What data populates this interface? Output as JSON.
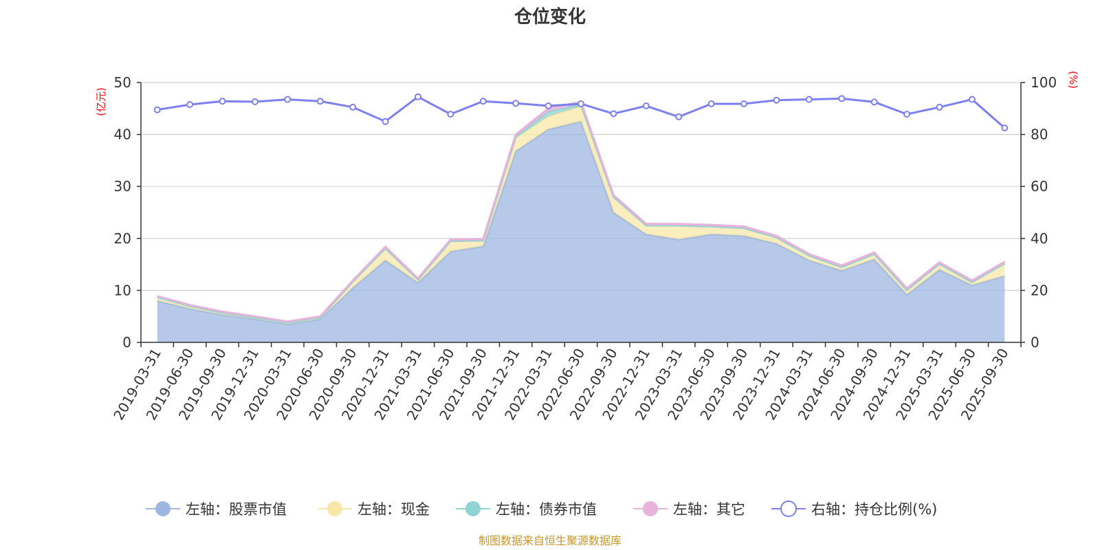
{
  "chart_data": {
    "type": "area",
    "title": "仓位变化",
    "left_axis_unit": "(亿元)",
    "right_axis_unit": "(%)",
    "left_ylim": [
      0,
      50
    ],
    "left_ticks": [
      0,
      10,
      20,
      30,
      40,
      50
    ],
    "right_ylim": [
      0,
      100
    ],
    "right_ticks": [
      0,
      20,
      40,
      60,
      80,
      100
    ],
    "grid": true,
    "legend_placement": "bottom",
    "categories": [
      "2019-03-31",
      "2019-06-30",
      "2019-09-30",
      "2019-12-31",
      "2020-03-31",
      "2020-06-30",
      "2020-09-30",
      "2020-12-31",
      "2021-03-31",
      "2021-06-30",
      "2021-09-30",
      "2021-12-31",
      "2022-03-31",
      "2022-06-30",
      "2022-09-30",
      "2022-12-31",
      "2023-03-31",
      "2023-06-30",
      "2023-09-30",
      "2023-12-31",
      "2024-03-31",
      "2024-06-30",
      "2024-09-30",
      "2024-12-31",
      "2025-03-31",
      "2025-06-30",
      "2025-09-30"
    ],
    "series": [
      {
        "name": "左轴：股票市值",
        "axis": "left",
        "stack": "total",
        "color": "#9fb7e0",
        "values": [
          8.0,
          6.5,
          5.3,
          4.5,
          3.5,
          4.5,
          10.5,
          15.8,
          11.5,
          17.5,
          18.5,
          36.8,
          41.0,
          42.5,
          25.0,
          20.8,
          19.8,
          20.8,
          20.5,
          19.0,
          15.8,
          13.8,
          16.0,
          9.2,
          14.0,
          11.0,
          12.8
        ]
      },
      {
        "name": "左轴：现金",
        "axis": "left",
        "stack": "total",
        "color": "#f8e8a8",
        "values": [
          0.7,
          0.5,
          0.4,
          0.3,
          0.3,
          0.3,
          1.2,
          2.3,
          0.6,
          2.0,
          1.1,
          2.5,
          2.5,
          2.9,
          3.0,
          1.7,
          2.7,
          1.5,
          1.5,
          1.2,
          0.9,
          0.7,
          1.0,
          0.9,
          1.1,
          0.6,
          2.4
        ]
      },
      {
        "name": "左轴：债券市值",
        "axis": "left",
        "stack": "total",
        "color": "#8fd4d4",
        "values": [
          0,
          0,
          0,
          0,
          0,
          0,
          0,
          0,
          0,
          0,
          0,
          0.3,
          0.9,
          0.4,
          0,
          0,
          0,
          0,
          0,
          0,
          0,
          0,
          0,
          0,
          0,
          0,
          0
        ]
      },
      {
        "name": "左轴：其它",
        "axis": "left",
        "stack": "total",
        "color": "#e6b3da",
        "values": [
          0.2,
          0.2,
          0.2,
          0.2,
          0.2,
          0.2,
          0.2,
          0.3,
          0.2,
          0.3,
          0.3,
          0.4,
          0.6,
          0.5,
          0.3,
          0.3,
          0.3,
          0.3,
          0.3,
          0.3,
          0.3,
          0.3,
          0.3,
          0.3,
          0.3,
          0.3,
          0.3
        ]
      },
      {
        "name": "右轴：持仓比例(%)",
        "axis": "right",
        "type": "line",
        "color": "#7b7ff0",
        "values": [
          89.5,
          91.5,
          92.8,
          92.6,
          93.5,
          92.8,
          90.5,
          85.0,
          94.5,
          87.8,
          92.8,
          92.0,
          91.0,
          91.8,
          88.0,
          91.0,
          86.8,
          91.8,
          91.8,
          93.2,
          93.5,
          93.8,
          92.5,
          87.8,
          90.5,
          93.5,
          82.5
        ]
      }
    ],
    "source": "制图数据来自恒生聚源数据库"
  }
}
